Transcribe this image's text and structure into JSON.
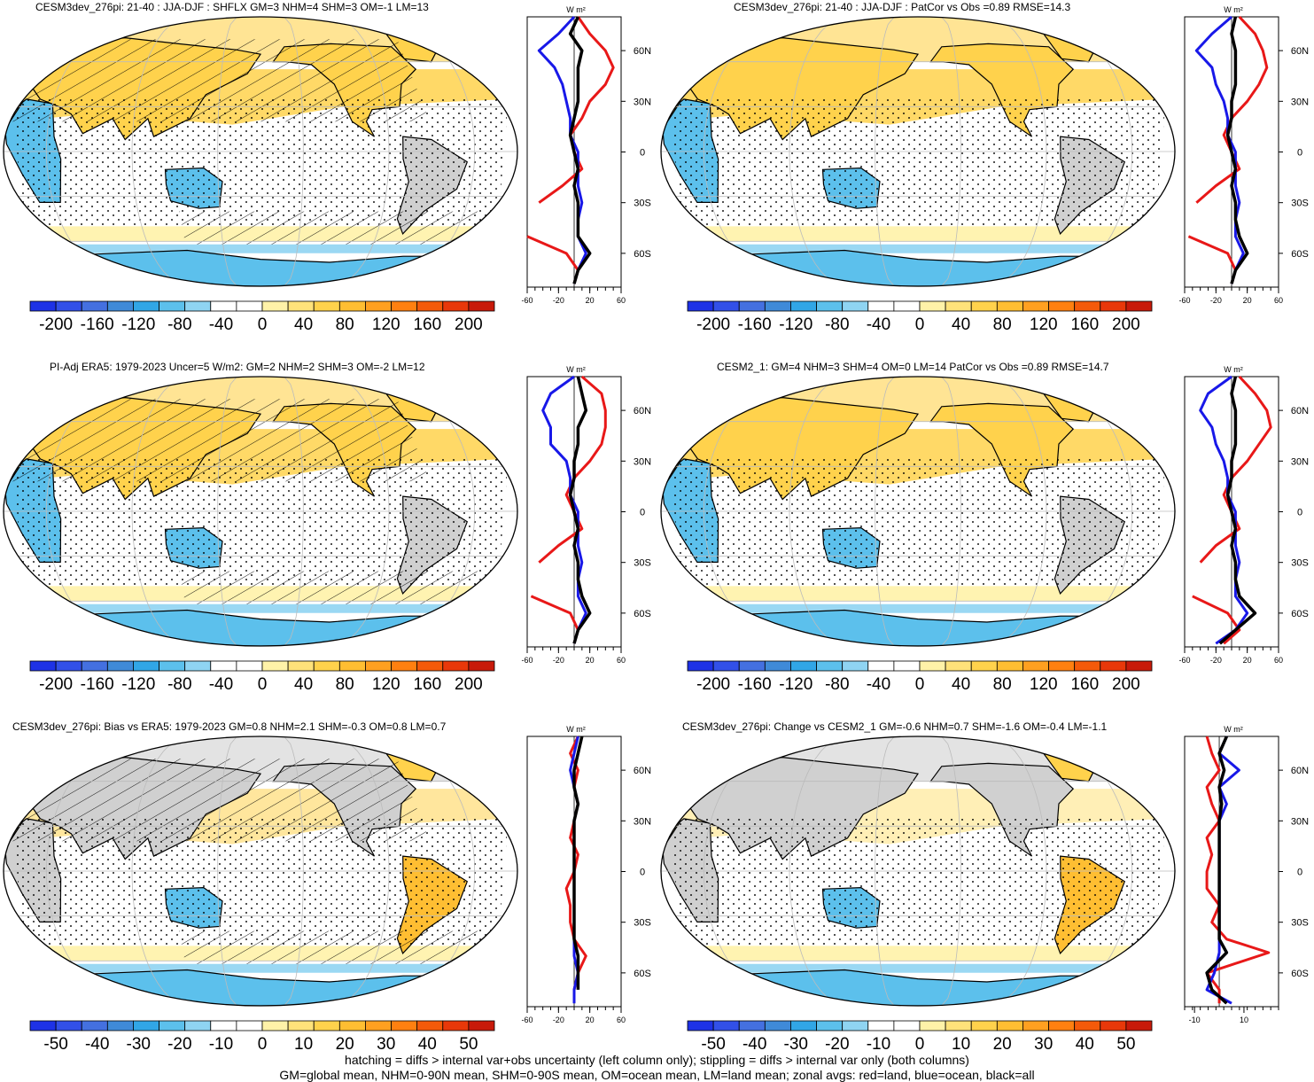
{
  "panels": [
    {
      "title": "CESM3dev_276pi: 21-40 : JJA-DJF : SHFLX GM=3 NHM=4 SHM=3 OM=-1 LM=13",
      "cbar_labels": [
        "-200",
        "-160",
        "-120",
        "-80",
        "-40",
        "0",
        "40",
        "80",
        "120",
        "160",
        "200"
      ],
      "cbar_colors": [
        "#1e32e6",
        "#3250e8",
        "#4470e0",
        "#3f8ad8",
        "#31a6e6",
        "#5cc0ec",
        "#8fd4f2",
        "#ffffff",
        "#ffffff",
        "#fff2a8",
        "#ffe27a",
        "#ffd24c",
        "#ffbe32",
        "#ffa020",
        "#ff8010",
        "#f45a0a",
        "#e8380a",
        "#c81a0a"
      ],
      "zonal": {
        "units": "W m²",
        "xticks": [
          "-60",
          "-20",
          "20",
          "60"
        ],
        "yticks": [
          "60N",
          "30N",
          "0",
          "30S",
          "60S"
        ]
      },
      "chart_data": {
        "type": "line",
        "variable": "zonal mean SHFLX difference",
        "x_units": "W m-2",
        "xlim": [
          -60,
          60
        ],
        "ylim": [
          -80,
          80
        ],
        "lat": [
          80,
          70,
          60,
          50,
          40,
          30,
          20,
          10,
          0,
          -10,
          -20,
          -30,
          -40,
          -50,
          -60,
          -70,
          -78
        ],
        "series": [
          {
            "name": "land",
            "color": "red",
            "values": [
              5,
              20,
              40,
              50,
              40,
              20,
              10,
              -5,
              0,
              10,
              -15,
              -45,
              null,
              -60,
              -10,
              5,
              0
            ]
          },
          {
            "name": "ocean",
            "color": "blue",
            "values": [
              0,
              -20,
              -45,
              -25,
              -15,
              -10,
              -5,
              -5,
              5,
              5,
              5,
              10,
              5,
              5,
              15,
              5,
              0
            ]
          },
          {
            "name": "all",
            "color": "black",
            "values": [
              5,
              -5,
              10,
              5,
              5,
              5,
              0,
              -5,
              0,
              5,
              0,
              5,
              5,
              5,
              20,
              5,
              0
            ]
          }
        ]
      }
    },
    {
      "title": "CESM3dev_276pi: 21-40 : JJA-DJF : PatCor vs Obs =0.89 RMSE=14.3",
      "cbar_labels": [
        "-200",
        "-160",
        "-120",
        "-80",
        "-40",
        "0",
        "40",
        "80",
        "120",
        "160",
        "200"
      ],
      "cbar_colors": [
        "#1e32e6",
        "#3250e8",
        "#4470e0",
        "#3f8ad8",
        "#31a6e6",
        "#5cc0ec",
        "#8fd4f2",
        "#ffffff",
        "#ffffff",
        "#fff2a8",
        "#ffe27a",
        "#ffd24c",
        "#ffbe32",
        "#ffa020",
        "#ff8010",
        "#f45a0a",
        "#e8380a",
        "#c81a0a"
      ],
      "zonal": {
        "units": "W m²",
        "xticks": [
          "-60",
          "-20",
          "20",
          "60"
        ],
        "yticks": [
          "60N",
          "30N",
          "0",
          "30S",
          "60S"
        ]
      },
      "chart_data": {
        "type": "line",
        "variable": "zonal mean SHFLX difference",
        "x_units": "W m-2",
        "xlim": [
          -60,
          60
        ],
        "ylim": [
          -80,
          80
        ],
        "lat": [
          80,
          70,
          60,
          50,
          40,
          30,
          20,
          10,
          0,
          -10,
          -20,
          -30,
          -40,
          -50,
          -60,
          -70,
          -78
        ],
        "series": [
          {
            "name": "land",
            "color": "red",
            "values": [
              10,
              30,
              40,
              45,
              35,
              20,
              0,
              -10,
              0,
              10,
              -20,
              -45,
              null,
              -55,
              -5,
              5,
              0
            ]
          },
          {
            "name": "ocean",
            "color": "blue",
            "values": [
              0,
              -25,
              -45,
              -25,
              -20,
              -10,
              -5,
              -5,
              5,
              5,
              5,
              10,
              5,
              5,
              15,
              5,
              0
            ]
          },
          {
            "name": "all",
            "color": "black",
            "values": [
              5,
              0,
              5,
              5,
              5,
              0,
              0,
              -5,
              0,
              5,
              0,
              5,
              5,
              10,
              20,
              5,
              0
            ]
          }
        ]
      }
    },
    {
      "title": "PI-Adj ERA5: 1979-2023 Uncer=5 W/m2: GM=2 NHM=2 SHM=3 OM=-2 LM=12",
      "cbar_labels": [
        "-200",
        "-160",
        "-120",
        "-80",
        "-40",
        "0",
        "40",
        "80",
        "120",
        "160",
        "200"
      ],
      "cbar_colors": [
        "#1e32e6",
        "#3250e8",
        "#4470e0",
        "#3f8ad8",
        "#31a6e6",
        "#5cc0ec",
        "#8fd4f2",
        "#ffffff",
        "#ffffff",
        "#fff2a8",
        "#ffe27a",
        "#ffd24c",
        "#ffbe32",
        "#ffa020",
        "#ff8010",
        "#f45a0a",
        "#e8380a",
        "#c81a0a"
      ],
      "zonal": {
        "units": "W m²",
        "xticks": [
          "-60",
          "-20",
          "20",
          "60"
        ],
        "yticks": [
          "60N",
          "30N",
          "0",
          "30S",
          "60S"
        ]
      },
      "chart_data": {
        "type": "line",
        "variable": "zonal mean SHFLX difference",
        "x_units": "W m-2",
        "xlim": [
          -60,
          60
        ],
        "ylim": [
          -80,
          80
        ],
        "lat": [
          80,
          70,
          60,
          50,
          40,
          30,
          20,
          10,
          0,
          -10,
          -20,
          -30,
          -40,
          -50,
          -60,
          -70,
          -78
        ],
        "series": [
          {
            "name": "land",
            "color": "red",
            "values": [
              10,
              35,
              40,
              40,
              35,
              20,
              0,
              -10,
              0,
              10,
              -20,
              -45,
              null,
              -55,
              -5,
              5,
              0
            ]
          },
          {
            "name": "ocean",
            "color": "blue",
            "values": [
              0,
              -30,
              -40,
              -30,
              -30,
              -10,
              -5,
              -5,
              5,
              5,
              5,
              10,
              5,
              5,
              15,
              5,
              0
            ]
          },
          {
            "name": "all",
            "color": "black",
            "values": [
              5,
              10,
              15,
              5,
              5,
              0,
              0,
              -5,
              0,
              5,
              0,
              5,
              5,
              10,
              20,
              5,
              0
            ]
          }
        ]
      }
    },
    {
      "title": "CESM2_1: GM=4 NHM=3 SHM=4 OM=0 LM=14 PatCor vs Obs =0.89 RMSE=14.7",
      "cbar_labels": [
        "-200",
        "-160",
        "-120",
        "-80",
        "-40",
        "0",
        "40",
        "80",
        "120",
        "160",
        "200"
      ],
      "cbar_colors": [
        "#1e32e6",
        "#3250e8",
        "#4470e0",
        "#3f8ad8",
        "#31a6e6",
        "#5cc0ec",
        "#8fd4f2",
        "#ffffff",
        "#ffffff",
        "#fff2a8",
        "#ffe27a",
        "#ffd24c",
        "#ffbe32",
        "#ffa020",
        "#ff8010",
        "#f45a0a",
        "#e8380a",
        "#c81a0a"
      ],
      "zonal": {
        "units": "W m²",
        "xticks": [
          "-60",
          "-20",
          "20",
          "60"
        ],
        "yticks": [
          "60N",
          "30N",
          "0",
          "30S",
          "60S"
        ]
      },
      "chart_data": {
        "type": "line",
        "variable": "zonal mean SHFLX difference",
        "x_units": "W m-2",
        "xlim": [
          -60,
          60
        ],
        "ylim": [
          -80,
          80
        ],
        "lat": [
          80,
          70,
          60,
          50,
          40,
          30,
          20,
          10,
          0,
          -10,
          -20,
          -30,
          -40,
          -50,
          -60,
          -70,
          -78
        ],
        "series": [
          {
            "name": "land",
            "color": "red",
            "values": [
              10,
              30,
              45,
              50,
              35,
              20,
              0,
              -10,
              0,
              10,
              -20,
              -40,
              null,
              -50,
              -5,
              10,
              -10
            ]
          },
          {
            "name": "ocean",
            "color": "blue",
            "values": [
              0,
              -30,
              -40,
              -25,
              -20,
              -10,
              -5,
              -5,
              5,
              5,
              5,
              10,
              5,
              5,
              20,
              5,
              -20
            ]
          },
          {
            "name": "all",
            "color": "black",
            "values": [
              5,
              0,
              5,
              5,
              5,
              0,
              0,
              -5,
              0,
              5,
              0,
              5,
              5,
              10,
              30,
              5,
              -15
            ]
          }
        ]
      }
    },
    {
      "title": "CESM3dev_276pi: Bias vs ERA5: 1979-2023 GM=0.8 NHM=2.1 SHM=-0.3 OM=0.8 LM=0.7",
      "cbar_labels": [
        "-50",
        "-40",
        "-30",
        "-20",
        "-10",
        "0",
        "10",
        "20",
        "30",
        "40",
        "50"
      ],
      "cbar_colors": [
        "#1e32e6",
        "#3250e8",
        "#4470e0",
        "#3f8ad8",
        "#31a6e6",
        "#5cc0ec",
        "#8fd4f2",
        "#ffffff",
        "#ffffff",
        "#fff2a8",
        "#ffe27a",
        "#ffd24c",
        "#ffbe32",
        "#ffa020",
        "#ff8010",
        "#f45a0a",
        "#e8380a",
        "#c81a0a"
      ],
      "zonal": {
        "units": "W m²",
        "xticks": [
          "-60",
          "-20",
          "20",
          "60"
        ],
        "yticks": [
          "60N",
          "30N",
          "0",
          "30S",
          "60S"
        ]
      },
      "chart_data": {
        "type": "line",
        "variable": "zonal mean SHFLX bias",
        "x_units": "W m-2",
        "xlim": [
          -60,
          60
        ],
        "ylim": [
          -80,
          80
        ],
        "lat": [
          80,
          70,
          60,
          50,
          40,
          30,
          20,
          10,
          0,
          -10,
          -20,
          -30,
          -40,
          -50,
          -60,
          -70,
          -78
        ],
        "series": [
          {
            "name": "land",
            "color": "red",
            "values": [
              5,
              -5,
              5,
              0,
              5,
              0,
              -5,
              5,
              0,
              -10,
              -5,
              -5,
              0,
              15,
              5,
              0,
              null
            ]
          },
          {
            "name": "ocean",
            "color": "blue",
            "values": [
              5,
              0,
              -5,
              0,
              5,
              0,
              0,
              0,
              0,
              0,
              0,
              0,
              0,
              0,
              5,
              0,
              0
            ]
          },
          {
            "name": "all",
            "color": "black",
            "values": [
              10,
              5,
              0,
              0,
              5,
              0,
              0,
              0,
              0,
              0,
              0,
              0,
              0,
              5,
              5,
              5,
              null
            ]
          }
        ]
      }
    },
    {
      "title": "CESM3dev_276pi: Change vs CESM2_1 GM=-0.6 NHM=0.7 SHM=-1.6 OM=-0.4 LM=-1.1",
      "cbar_labels": [
        "-50",
        "-40",
        "-30",
        "-20",
        "-10",
        "0",
        "10",
        "20",
        "30",
        "40",
        "50"
      ],
      "cbar_colors": [
        "#1e32e6",
        "#3250e8",
        "#4470e0",
        "#3f8ad8",
        "#31a6e6",
        "#5cc0ec",
        "#8fd4f2",
        "#ffffff",
        "#ffffff",
        "#fff2a8",
        "#ffe27a",
        "#ffd24c",
        "#ffbe32",
        "#ffa020",
        "#ff8010",
        "#f45a0a",
        "#e8380a",
        "#c81a0a"
      ],
      "zonal": {
        "units": "W m²",
        "xticks": [
          "-10",
          "10"
        ],
        "yticks": [
          "60N",
          "30N",
          "0",
          "30S",
          "60S"
        ]
      },
      "chart_data": {
        "type": "line",
        "variable": "zonal mean SHFLX change",
        "x_units": "W m-2",
        "xlim": [
          -14,
          24
        ],
        "ylim": [
          -80,
          80
        ],
        "lat": [
          80,
          70,
          60,
          50,
          40,
          30,
          20,
          10,
          0,
          -10,
          -20,
          -30,
          -40,
          -48,
          -60,
          -70,
          -78
        ],
        "series": [
          {
            "name": "land",
            "color": "red",
            "values": [
              -5,
              -3,
              0,
              -5,
              -3,
              0,
              -5,
              -3,
              -5,
              -5,
              0,
              -3,
              3,
              20,
              -5,
              0,
              0
            ]
          },
          {
            "name": "ocean",
            "color": "blue",
            "values": [
              3,
              0,
              8,
              0,
              3,
              0,
              0,
              0,
              0,
              0,
              0,
              0,
              0,
              0,
              -2,
              -5,
              5
            ]
          },
          {
            "name": "all",
            "color": "black",
            "values": [
              3,
              0,
              2,
              0,
              1,
              0,
              0,
              0,
              0,
              0,
              0,
              0,
              0,
              3,
              -5,
              -3,
              3
            ]
          }
        ]
      }
    }
  ],
  "footer": {
    "line1": "hatching = diffs > internal var+obs uncertainty (left column only); stippling = diffs > internal var only (both columns)",
    "line2": "GM=global mean, NHM=0-90N mean, SHM=0-90S mean, OM=ocean mean, LM=land mean; zonal avgs: red=land, blue=ocean, black=all"
  }
}
